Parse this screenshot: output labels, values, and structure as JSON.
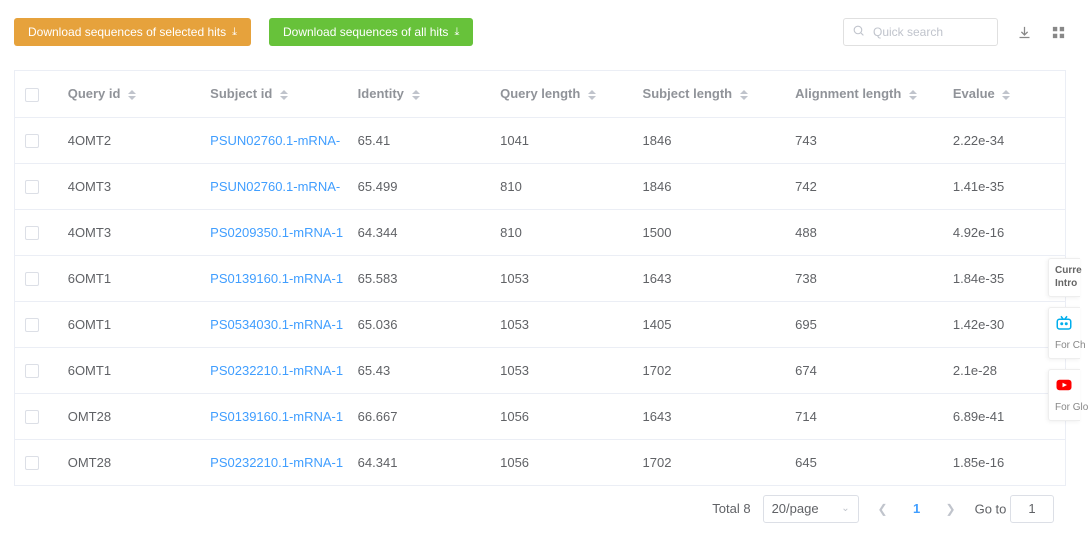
{
  "toolbar": {
    "download_selected_label": "Download sequences of selected hits",
    "download_all_label": "Download sequences of all hits",
    "search_placeholder": "Quick search"
  },
  "colors": {
    "btn_orange": "#e6a23c",
    "btn_green": "#67c23a",
    "link": "#409eff",
    "header_text": "#909399",
    "border": "#ebeef5"
  },
  "columns": [
    {
      "key": "query_id",
      "label": "Query id",
      "width": 140
    },
    {
      "key": "subject_id",
      "label": "Subject id",
      "width": 145
    },
    {
      "key": "identity",
      "label": "Identity",
      "width": 140
    },
    {
      "key": "query_length",
      "label": "Query length",
      "width": 140
    },
    {
      "key": "subject_length",
      "label": "Subject length",
      "width": 150
    },
    {
      "key": "alignment_length",
      "label": "Alignment length",
      "width": 155
    },
    {
      "key": "evalue",
      "label": "Evalue",
      "width": 120
    }
  ],
  "rows": [
    {
      "query_id": "4OMT2",
      "subject_id": "PSUN02760.1-mRNA-",
      "identity": "65.41",
      "query_length": "1041",
      "subject_length": "1846",
      "alignment_length": "743",
      "evalue": "2.22e-34"
    },
    {
      "query_id": "4OMT3",
      "subject_id": "PSUN02760.1-mRNA-",
      "identity": "65.499",
      "query_length": "810",
      "subject_length": "1846",
      "alignment_length": "742",
      "evalue": "1.41e-35"
    },
    {
      "query_id": "4OMT3",
      "subject_id": "PS0209350.1-mRNA-1",
      "identity": "64.344",
      "query_length": "810",
      "subject_length": "1500",
      "alignment_length": "488",
      "evalue": "4.92e-16"
    },
    {
      "query_id": "6OMT1",
      "subject_id": "PS0139160.1-mRNA-1",
      "identity": "65.583",
      "query_length": "1053",
      "subject_length": "1643",
      "alignment_length": "738",
      "evalue": "1.84e-35"
    },
    {
      "query_id": "6OMT1",
      "subject_id": "PS0534030.1-mRNA-1",
      "identity": "65.036",
      "query_length": "1053",
      "subject_length": "1405",
      "alignment_length": "695",
      "evalue": "1.42e-30"
    },
    {
      "query_id": "6OMT1",
      "subject_id": "PS0232210.1-mRNA-1",
      "identity": "65.43",
      "query_length": "1053",
      "subject_length": "1702",
      "alignment_length": "674",
      "evalue": "2.1e-28"
    },
    {
      "query_id": "OMT28",
      "subject_id": "PS0139160.1-mRNA-1",
      "identity": "66.667",
      "query_length": "1056",
      "subject_length": "1643",
      "alignment_length": "714",
      "evalue": "6.89e-41"
    },
    {
      "query_id": "OMT28",
      "subject_id": "PS0232210.1-mRNA-1",
      "identity": "64.341",
      "query_length": "1056",
      "subject_length": "1702",
      "alignment_length": "645",
      "evalue": "1.85e-16"
    }
  ],
  "pagination": {
    "total_label": "Total 8",
    "page_size_label": "20/page",
    "current_page": "1",
    "goto_label": "Go to",
    "goto_value": "1"
  },
  "float_side": {
    "item1_line1": "Curre",
    "item1_line2": "Intro",
    "item2_caption": "For Ch",
    "item3_caption": "For Glo"
  }
}
